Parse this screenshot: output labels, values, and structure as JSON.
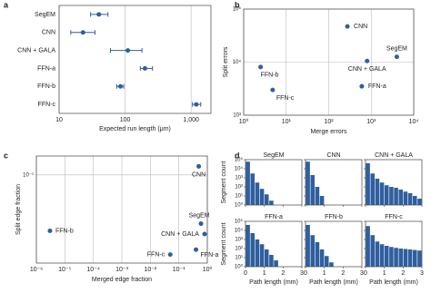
{
  "chart_data": [
    {
      "type": "errorbar",
      "panel_label": "a",
      "xlabel": "Expected run length (μm)",
      "categories": [
        "SegEM",
        "CNN",
        "CNN + GALA",
        "FFN-a",
        "FFN-b",
        "FFN-c"
      ],
      "values": [
        40,
        23,
        110,
        200,
        85,
        1200
      ],
      "lower": [
        30,
        15,
        60,
        170,
        75,
        1050
      ],
      "upper": [
        55,
        35,
        180,
        260,
        95,
        1400
      ],
      "color": "#2f5f9e",
      "log_x": true,
      "xlim": [
        10,
        2000
      ],
      "xticks": [
        10,
        100,
        {
          "value": 1000,
          "label": "1,000"
        }
      ],
      "grid": true
    },
    {
      "type": "scatter",
      "panel_label": "b",
      "xlabel": "Merge errors",
      "ylabel": "Split errors",
      "categories": [
        "CNN",
        "SegEM",
        "CNN + GALA",
        "FFN-b",
        "FFN-a",
        "FFN-c"
      ],
      "x": [
        275,
        4000,
        800,
        2.5,
        600,
        4.8
      ],
      "values": [
        47000,
        12600,
        10500,
        8100,
        3500,
        3000
      ],
      "color": "#2f5f9e",
      "log_x": true,
      "log_y": true,
      "xlim": [
        1,
        10000
      ],
      "ylim": [
        1000,
        100000
      ],
      "xticks": [
        {
          "value": 1,
          "label": "10⁰"
        },
        {
          "value": 10,
          "label": "10¹"
        },
        {
          "value": 100,
          "label": "10²"
        },
        {
          "value": 1000,
          "label": "10³"
        },
        {
          "value": 10000,
          "label": "10⁴"
        }
      ],
      "yticks": [
        {
          "value": 1000,
          "label": "10³"
        },
        {
          "value": 10000,
          "label": "10⁴"
        },
        {
          "value": 100000,
          "label": "10⁵"
        }
      ],
      "grid": true
    },
    {
      "type": "scatter",
      "panel_label": "c",
      "xlabel": "Merged edge fraction",
      "ylabel": "Split edge fraction",
      "categories": [
        "CNN",
        "SegEM",
        "CNN + GALA",
        "FFN-b",
        "FFN-c",
        "FFN-a"
      ],
      "x": [
        0.5,
        0.6,
        0.8,
        3e-06,
        0.05,
        0.4
      ],
      "values": [
        0.12,
        0.035,
        0.028,
        0.03,
        0.018,
        0.02
      ],
      "color": "#2f5f9e",
      "log_x": true,
      "log_y": true,
      "xlim": [
        1e-06,
        1
      ],
      "ylim": [
        0.015,
        0.15
      ],
      "xticks": [
        {
          "value": 1e-06,
          "label": "10⁻⁶"
        },
        {
          "value": 1e-05,
          "label": "10⁻⁵"
        },
        {
          "value": 0.0001,
          "label": "10⁻⁴"
        },
        {
          "value": 0.001,
          "label": "10⁻³"
        },
        {
          "value": 0.01,
          "label": "10⁻²"
        },
        {
          "value": 0.1,
          "label": "10⁻¹"
        },
        {
          "value": 1,
          "label": "10⁰"
        }
      ],
      "yticks": [
        {
          "value": 0.1,
          "label": "10⁻¹"
        }
      ],
      "grid": true
    },
    {
      "type": "histogram",
      "panel_label": "d",
      "xlabel": "Path length (mm)",
      "ylabel": "Segment count",
      "color": "#2f5f9e",
      "log_y": true,
      "bins": [
        0,
        0.25,
        0.5,
        0.75,
        1,
        1.25,
        1.5,
        1.75,
        2,
        2.25,
        2.5,
        2.75,
        3
      ],
      "xlim": [
        0,
        3
      ],
      "ylim": [
        1,
        100000
      ],
      "xticks": [
        0,
        1,
        2,
        3
      ],
      "yticks": [
        {
          "value": 1,
          "label": "10⁰"
        },
        {
          "value": 10,
          "label": "10¹"
        },
        {
          "value": 100,
          "label": "10²"
        },
        {
          "value": 1000,
          "label": "10³"
        },
        {
          "value": 10000,
          "label": "10⁴"
        },
        {
          "value": 100000,
          "label": "10⁵"
        }
      ],
      "panels": [
        {
          "title": "SegEM",
          "counts": [
            60000,
            3000,
            300,
            60,
            15,
            3,
            1,
            0,
            0,
            0,
            0,
            0
          ]
        },
        {
          "title": "CNN",
          "counts": [
            60000,
            2000,
            100,
            10,
            1,
            0,
            0,
            0,
            0,
            0,
            0,
            0
          ]
        },
        {
          "title": "CNN + GALA",
          "counts": [
            40000,
            3000,
            800,
            300,
            150,
            100,
            80,
            50,
            30,
            20,
            10,
            5
          ]
        },
        {
          "title": "FFN-a",
          "counts": [
            40000,
            5000,
            1000,
            300,
            80,
            20,
            5,
            1,
            0,
            0,
            0,
            0
          ]
        },
        {
          "title": "FFN-b",
          "counts": [
            40000,
            3000,
            500,
            80,
            15,
            3,
            1,
            0,
            0,
            0,
            0,
            0
          ]
        },
        {
          "title": "FFN-c",
          "counts": [
            30000,
            3000,
            600,
            300,
            200,
            150,
            120,
            100,
            90,
            80,
            70,
            60
          ]
        }
      ]
    }
  ]
}
